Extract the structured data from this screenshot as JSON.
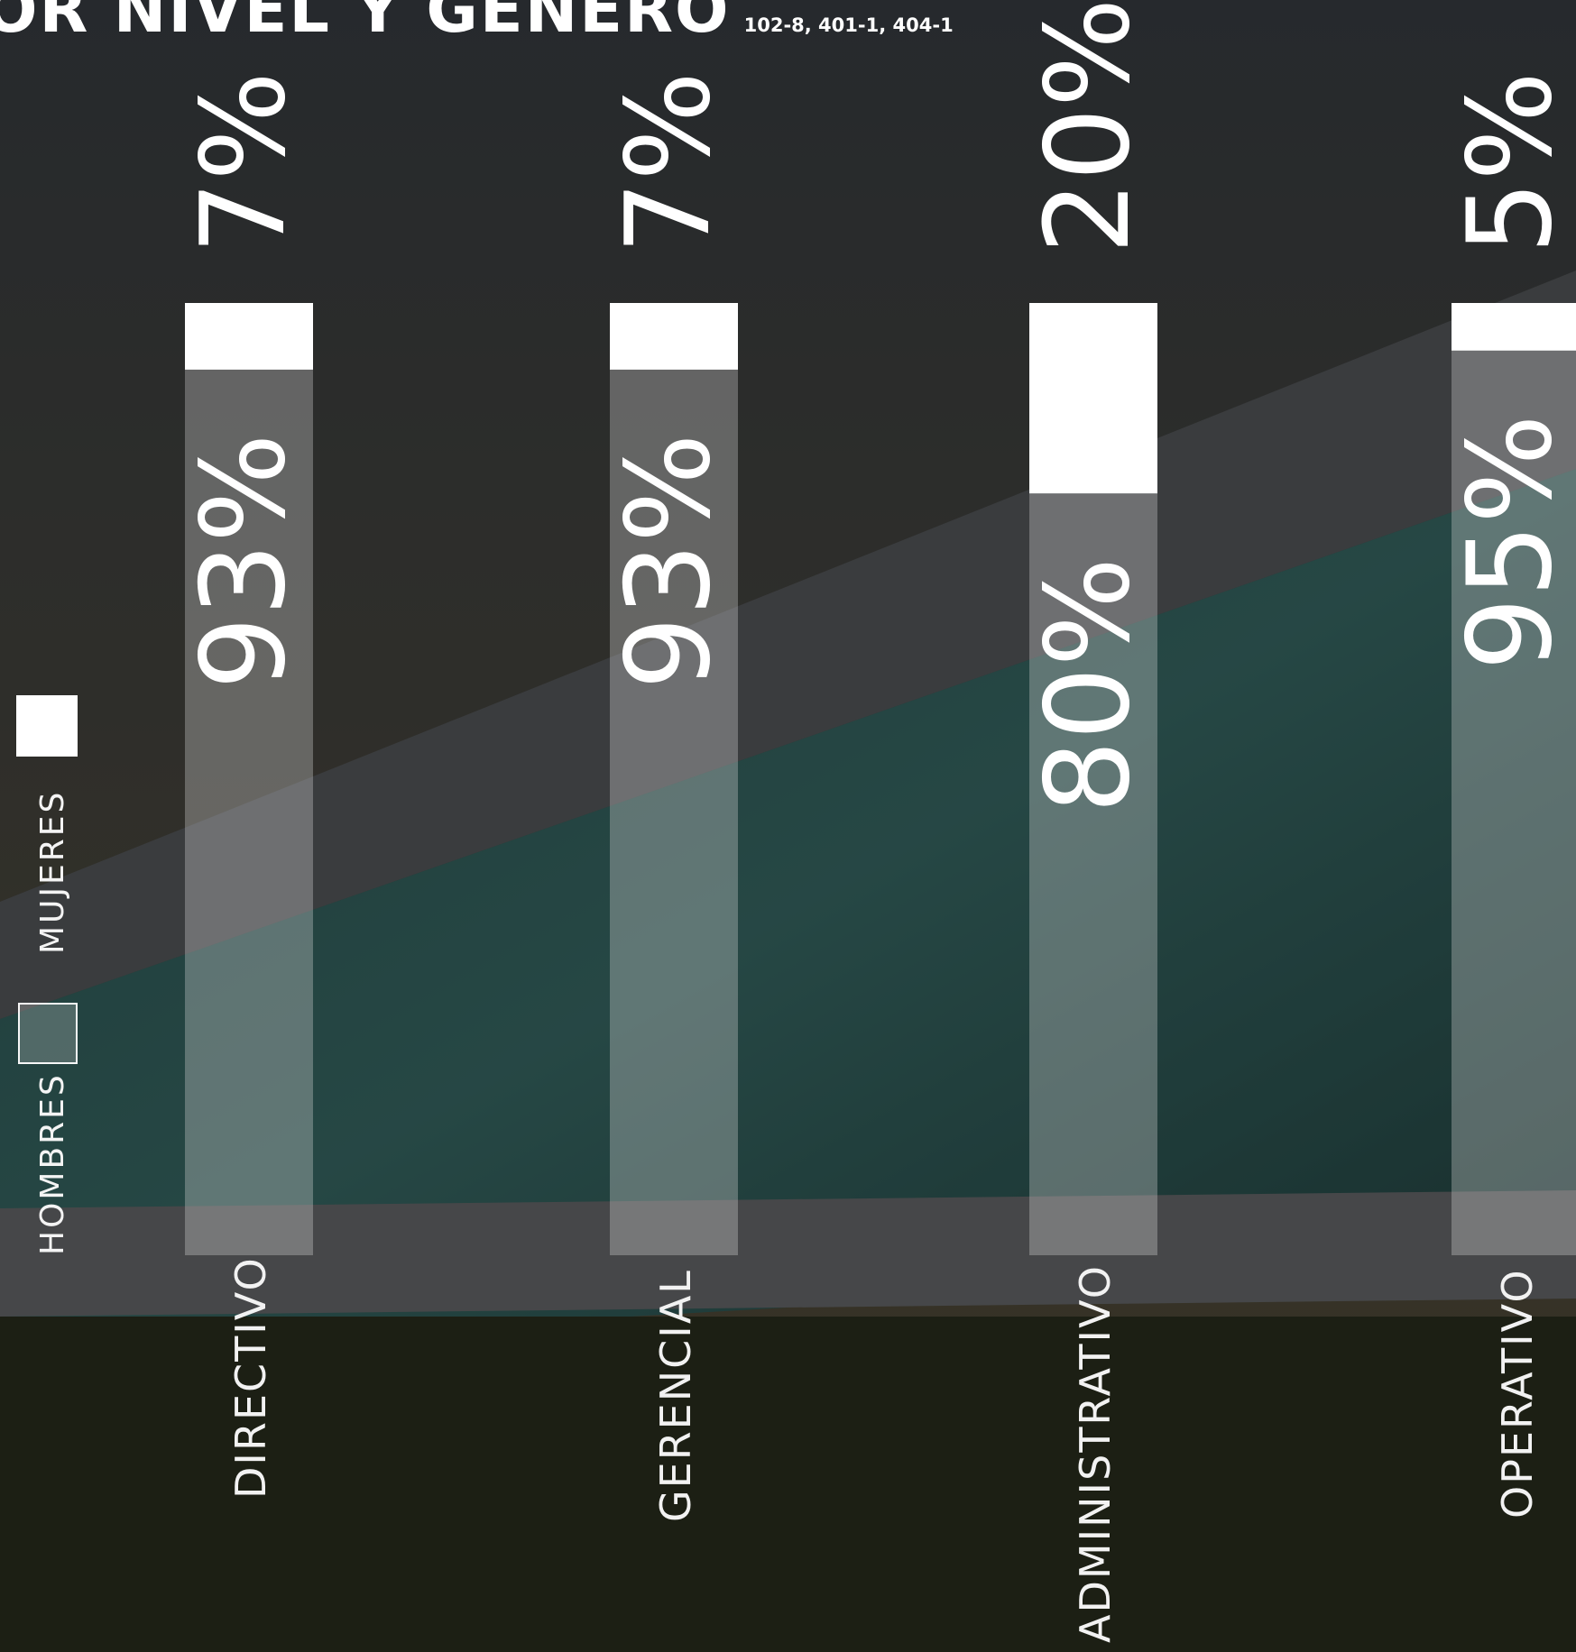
{
  "title": {
    "main": "OR NIVEL Y GÉNERO",
    "reference": "102-8, 401-1, 404-1"
  },
  "legend": {
    "women": "MUJERES",
    "men": "HOMBRES"
  },
  "colors": {
    "women": "#ffffff",
    "men": "#dcdcdc",
    "text": "#ffffff"
  },
  "chart_data": {
    "type": "bar",
    "stacked": true,
    "unit": "%",
    "categories": [
      "DIRECTIVO",
      "GERENCIAL",
      "ADMINISTRATIVO",
      "OPERATIVO"
    ],
    "series": [
      {
        "name": "MUJERES",
        "values": [
          7,
          7,
          20,
          5
        ],
        "labels": [
          "7%",
          "7%",
          "20%",
          "5%"
        ]
      },
      {
        "name": "HOMBRES",
        "values": [
          93,
          93,
          80,
          95
        ],
        "labels": [
          "93%",
          "93%",
          "80%",
          "95%"
        ]
      }
    ],
    "ylim": [
      0,
      100
    ],
    "legend_position": "left"
  }
}
